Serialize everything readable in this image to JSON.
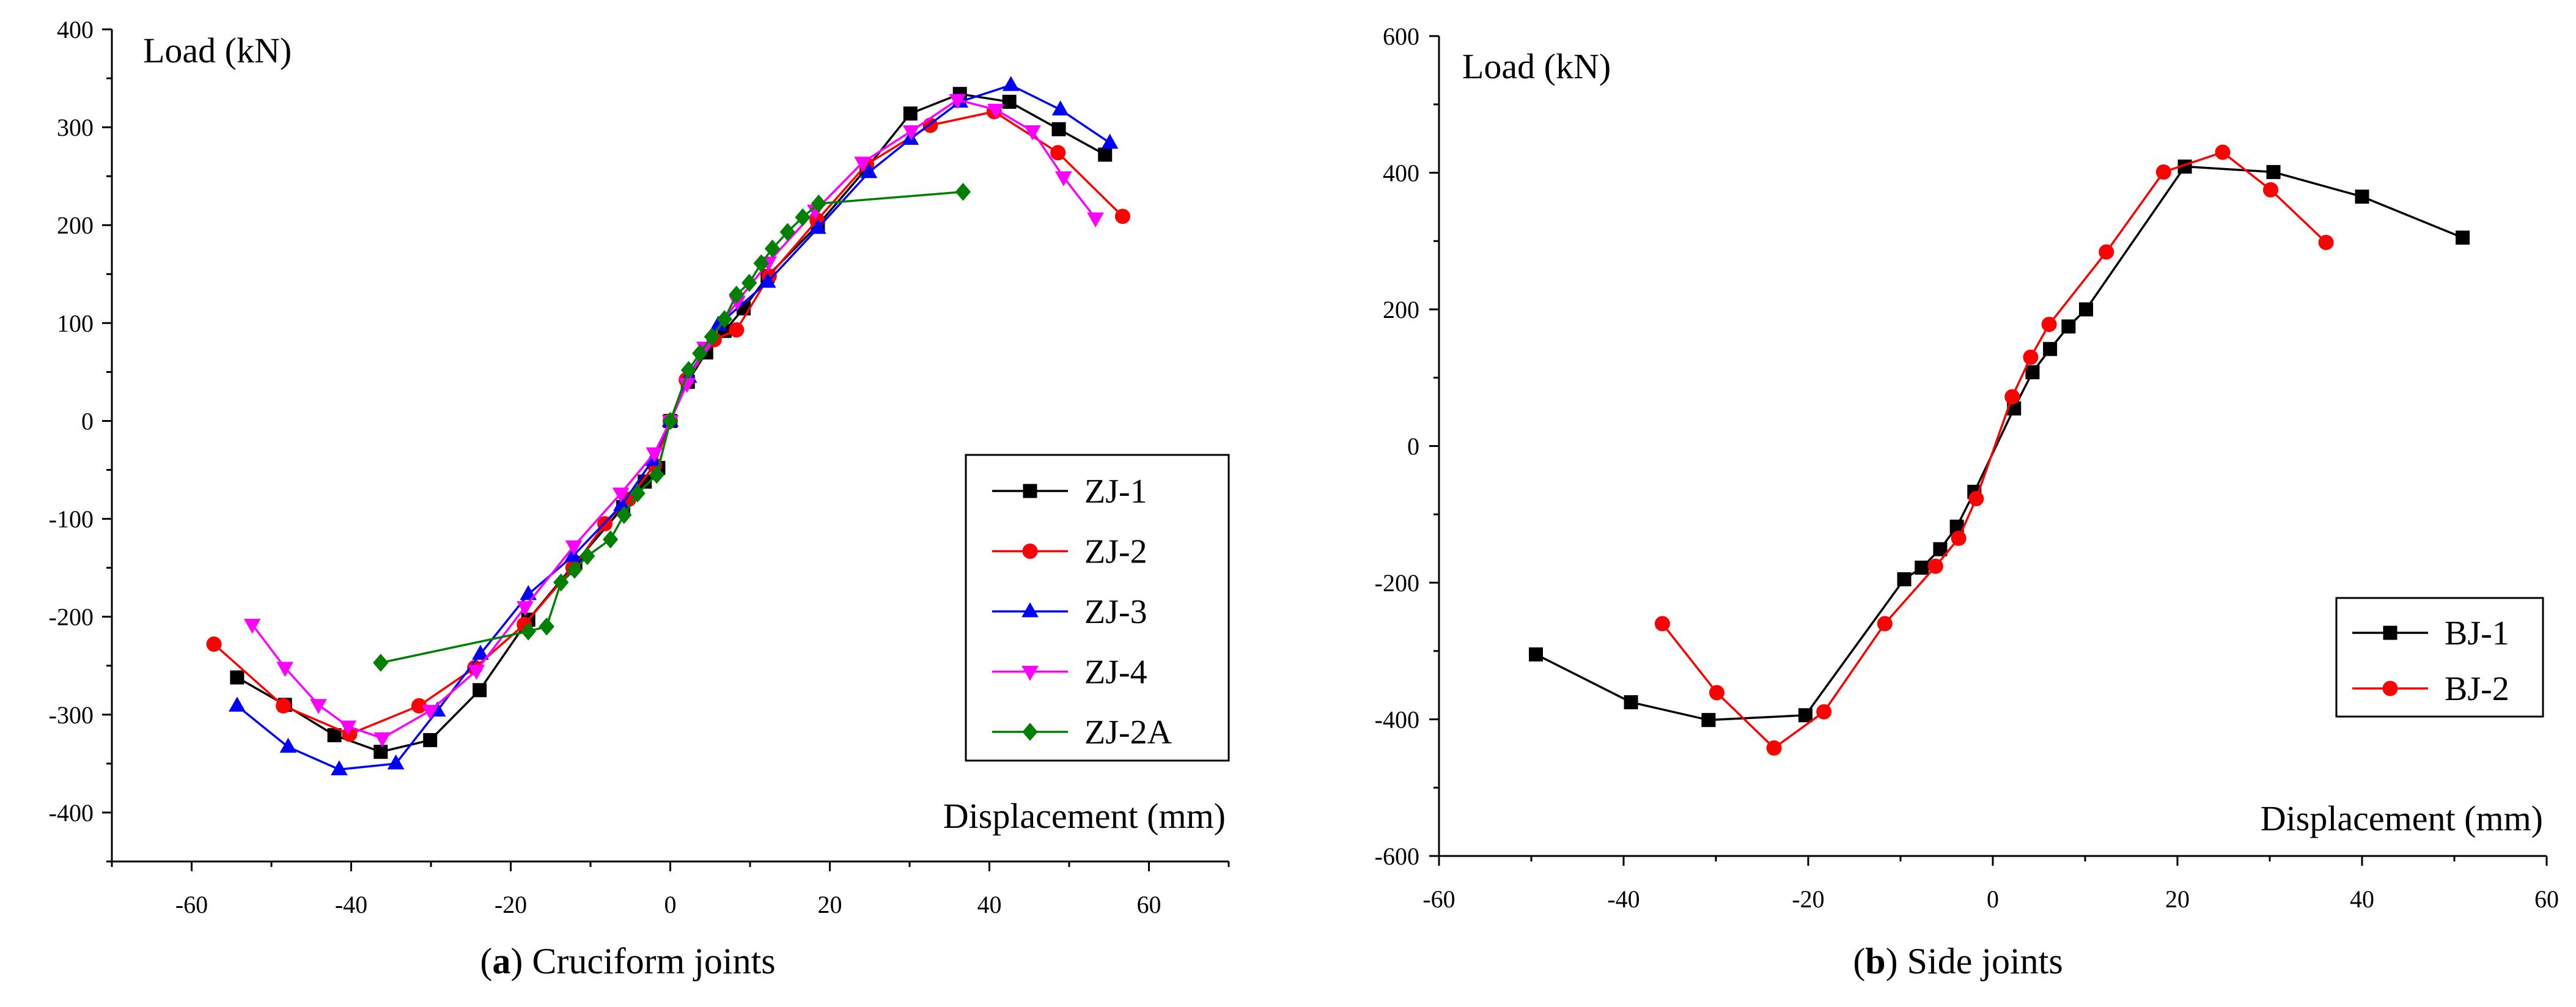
{
  "chart_data": [
    {
      "type": "line",
      "ylabel": "Load (kN)",
      "xlabel": "Displacement (mm)",
      "xlim": [
        -70,
        70
      ],
      "ylim": [
        -450,
        400
      ],
      "xticks": [
        -60,
        -40,
        -20,
        0,
        20,
        40,
        60
      ],
      "yticks": [
        400,
        300,
        200,
        100,
        0,
        -100,
        -200,
        -300,
        -400
      ],
      "xminor": 10,
      "yminor": 50,
      "grid": false,
      "caption": {
        "open": "(",
        "label": "a",
        "close": ")",
        "text": "Cruciform joints"
      },
      "series": [
        {
          "name": "ZJ-1",
          "color": "#000000",
          "marker": "square",
          "x": [
            -54.3,
            -48.3,
            -42.1,
            -36.3,
            -30.1,
            -23.9,
            -17.8,
            -11.9,
            -5.9,
            -3.2,
            -1.5,
            0,
            2.2,
            4.5,
            6.8,
            9.2,
            12.2,
            18.5,
            24.6,
            30.1,
            36.3,
            42.5,
            48.7,
            54.5
          ],
          "y": [
            -262,
            -290,
            -321,
            -338,
            -326,
            -275,
            -203,
            -145,
            -88,
            -62,
            -48,
            0,
            40,
            70,
            92,
            115,
            148,
            200,
            258,
            314,
            334,
            326,
            298,
            272
          ]
        },
        {
          "name": "ZJ-2",
          "color": "#ff0000",
          "marker": "circle",
          "x": [
            -57.2,
            -48.5,
            -40.2,
            -31.5,
            -24.5,
            -18.3,
            -12.2,
            -8.2,
            -5.2,
            -2.0,
            0,
            2.0,
            5.5,
            8.3,
            12.4,
            18.4,
            24.6,
            32.6,
            40.6,
            48.6,
            56.7
          ],
          "y": [
            -228,
            -291,
            -320,
            -291,
            -252,
            -208,
            -150,
            -105,
            -80,
            -45,
            0,
            42,
            83,
            93,
            148,
            205,
            262,
            302,
            316,
            274,
            209
          ]
        },
        {
          "name": "ZJ-3",
          "color": "#0000ff",
          "marker": "triangle-up",
          "x": [
            -54.3,
            -47.9,
            -41.5,
            -34.4,
            -29.2,
            -23.8,
            -17.8,
            -12.2,
            -6.1,
            -2.2,
            0,
            2.3,
            6.0,
            12.2,
            18.5,
            24.9,
            30.1,
            36.3,
            42.7,
            48.9,
            55.1
          ],
          "y": [
            -291,
            -333,
            -356,
            -350,
            -296,
            -238,
            -177,
            -138,
            -86,
            -40,
            0,
            45,
            98,
            142,
            197,
            254,
            288,
            326,
            343,
            318,
            284
          ]
        },
        {
          "name": "ZJ-4",
          "color": "#ff00ff",
          "marker": "triangle-down",
          "x": [
            -52.4,
            -48.3,
            -44.1,
            -40.4,
            -36.1,
            -30.1,
            -24.3,
            -18.2,
            -12.1,
            -6.2,
            -2.0,
            0,
            2.1,
            4.3,
            8.4,
            12.3,
            18.2,
            24.1,
            30.2,
            36.0,
            40.8,
            45.4,
            49.3,
            53.3
          ],
          "y": [
            -208,
            -252,
            -290,
            -312,
            -324,
            -296,
            -255,
            -190,
            -128,
            -74,
            -33,
            0,
            38,
            75,
            122,
            162,
            215,
            264,
            296,
            328,
            318,
            296,
            249,
            207
          ]
        },
        {
          "name": "ZJ-2A",
          "color": "#008000",
          "marker": "diamond",
          "x": [
            -36.3,
            -17.8,
            -15.5,
            -13.7,
            -12.0,
            -10.4,
            -7.5,
            -5.8,
            -4.1,
            -1.7,
            0,
            2.3,
            3.7,
            5.2,
            6.8,
            8.3,
            9.9,
            11.4,
            12.8,
            14.7,
            16.6,
            18.6,
            36.7
          ],
          "y": [
            -247,
            -215,
            -210,
            -165,
            -152,
            -138,
            -121,
            -96,
            -74,
            -55,
            0,
            52,
            69,
            86,
            104,
            129,
            141,
            161,
            176,
            193,
            208,
            222,
            234
          ]
        }
      ]
    },
    {
      "type": "line",
      "ylabel": "Load (kN)",
      "xlabel": "Displacement (mm)",
      "xlim": [
        -60,
        60
      ],
      "ylim": [
        -600,
        600
      ],
      "xticks": [
        -60,
        -40,
        -20,
        0,
        20,
        40,
        60
      ],
      "yticks": [
        600,
        400,
        200,
        0,
        -200,
        -400,
        -600
      ],
      "xminor": 10,
      "yminor": 100,
      "grid": false,
      "caption": {
        "open": "(",
        "label": "b",
        "close": ")",
        "text": "Side joints"
      },
      "series": [
        {
          "name": "BJ-1",
          "color": "#000000",
          "marker": "square",
          "x": [
            -49.5,
            -39.2,
            -30.8,
            -20.3,
            -9.6,
            -7.7,
            -5.7,
            -3.9,
            -2.0,
            2.3,
            4.3,
            6.2,
            8.2,
            10.1,
            20.8,
            30.4,
            40.0,
            50.9
          ],
          "y": [
            -305,
            -375,
            -401,
            -394,
            -195,
            -178,
            -151,
            -118,
            -67,
            55,
            108,
            142,
            175,
            200,
            409,
            401,
            365,
            305
          ]
        },
        {
          "name": "BJ-2",
          "color": "#ff0000",
          "marker": "circle",
          "x": [
            -35.8,
            -29.9,
            -23.7,
            -18.3,
            -11.7,
            -6.2,
            -3.7,
            -1.8,
            2.1,
            4.1,
            6.1,
            12.3,
            18.5,
            24.9,
            30.1,
            36.1
          ],
          "y": [
            -260,
            -361,
            -442,
            -389,
            -260,
            -176,
            -135,
            -77,
            72,
            130,
            178,
            284,
            401,
            430,
            375,
            298
          ]
        }
      ]
    }
  ]
}
